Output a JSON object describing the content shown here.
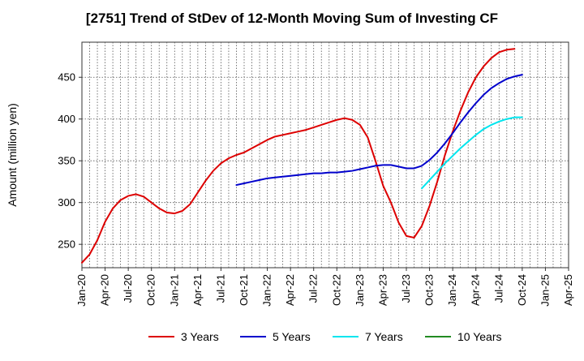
{
  "chart_data": {
    "type": "line",
    "title": "[2751]  Trend of StDev of 12-Month Moving Sum of Investing CF",
    "xlabel": "",
    "ylabel": "Amount (million yen)",
    "ylim": [
      222,
      492
    ],
    "y_ticks": [
      250,
      300,
      350,
      400,
      450
    ],
    "x_tick_labels": [
      "Jan-20",
      "Apr-20",
      "Jul-20",
      "Oct-20",
      "Jan-21",
      "Apr-21",
      "Jul-21",
      "Oct-21",
      "Jan-22",
      "Apr-22",
      "Jul-22",
      "Oct-22",
      "Jan-23",
      "Apr-23",
      "Jul-23",
      "Oct-23",
      "Jan-24",
      "Apr-24",
      "Jul-24",
      "Oct-24",
      "Jan-25",
      "Apr-25"
    ],
    "grid": true,
    "legend_position": "bottom",
    "x_start": "2020-01",
    "series": [
      {
        "name": "3 Years",
        "color": "#dd0000",
        "start": "2020-01",
        "values": [
          228,
          238,
          255,
          277,
          293,
          303,
          308,
          310,
          307,
          300,
          293,
          288,
          287,
          290,
          298,
          312,
          326,
          338,
          347,
          353,
          357,
          360,
          365,
          370,
          375,
          379,
          381,
          383,
          385,
          387,
          390,
          393,
          396,
          399,
          401,
          399,
          393,
          378,
          350,
          320,
          300,
          276,
          260,
          258,
          272,
          296,
          325,
          357,
          385,
          410,
          432,
          450,
          463,
          473,
          480,
          483,
          484
        ]
      },
      {
        "name": "5 Years",
        "color": "#0000cc",
        "start": "2021-09",
        "values": [
          321,
          323,
          325,
          327,
          329,
          330,
          331,
          332,
          333,
          334,
          335,
          335,
          336,
          336,
          337,
          338,
          340,
          342,
          344,
          345,
          345,
          343,
          341,
          341,
          344,
          351,
          360,
          371,
          383,
          396,
          408,
          419,
          429,
          437,
          443,
          448,
          451,
          453
        ]
      },
      {
        "name": "7 Years",
        "color": "#00e5ee",
        "start": "2023-09",
        "values": [
          317,
          327,
          337,
          347,
          356,
          365,
          373,
          381,
          388,
          393,
          397,
          400,
          402,
          402
        ]
      },
      {
        "name": "10 Years",
        "color": "#228b22",
        "start": "2020-01",
        "values": []
      }
    ]
  }
}
